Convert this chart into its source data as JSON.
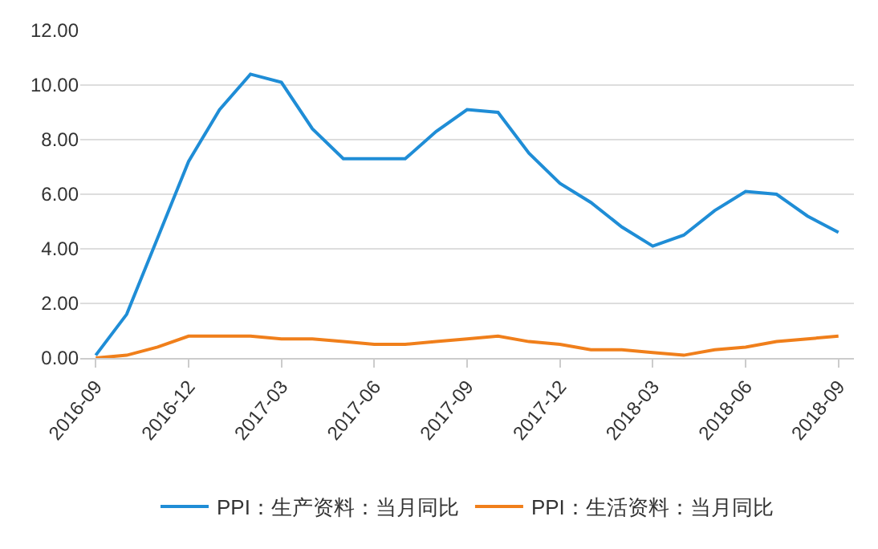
{
  "chart_data": {
    "type": "line",
    "categories": [
      "2016-09",
      null,
      null,
      "2016-12",
      null,
      null,
      "2017-03",
      null,
      null,
      "2017-06",
      null,
      null,
      "2017-09",
      null,
      null,
      "2017-12",
      null,
      null,
      "2018-03",
      null,
      null,
      "2018-06",
      null,
      null,
      "2018-09"
    ],
    "series": [
      {
        "name": "PPI：生产资料：当月同比",
        "color": "#1f8dd6",
        "values": [
          0.1,
          1.6,
          4.4,
          7.2,
          9.1,
          10.4,
          10.1,
          8.4,
          7.3,
          7.3,
          7.3,
          8.3,
          9.1,
          9.0,
          7.5,
          6.4,
          5.7,
          4.8,
          4.1,
          4.5,
          5.4,
          6.1,
          6.0,
          5.2,
          4.6
        ]
      },
      {
        "name": "PPI：生活资料：当月同比",
        "color": "#f07f1b",
        "values": [
          0.0,
          0.1,
          0.4,
          0.8,
          0.8,
          0.8,
          0.7,
          0.7,
          0.6,
          0.5,
          0.5,
          0.6,
          0.7,
          0.8,
          0.6,
          0.5,
          0.3,
          0.3,
          0.2,
          0.1,
          0.3,
          0.4,
          0.6,
          0.7,
          0.8
        ]
      }
    ],
    "ylim": [
      0,
      12
    ],
    "yticks": [
      {
        "value": 0,
        "label": "0.00"
      },
      {
        "value": 2,
        "label": "2.00"
      },
      {
        "value": 4,
        "label": "4.00"
      },
      {
        "value": 6,
        "label": "6.00"
      },
      {
        "value": 8,
        "label": "8.00"
      },
      {
        "value": 10,
        "label": "10.00"
      },
      {
        "value": 12,
        "label": "12.00"
      }
    ],
    "grid": "y",
    "legend": "bottom",
    "marker": "none",
    "line_style": "solid"
  }
}
